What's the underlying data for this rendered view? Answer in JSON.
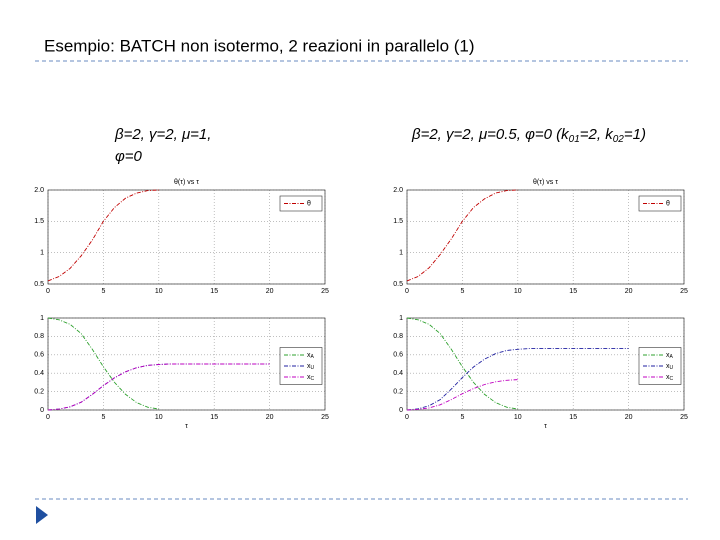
{
  "header": {
    "title": "Esempio: BATCH non isotermo, 2 reazioni in parallelo (1)"
  },
  "captions": [
    [
      "β=2, γ=2, μ=1,",
      "φ=0"
    ],
    [
      "β=2, γ=2, μ=0.5, φ=0  (k",
      "01",
      "=2, k",
      "02",
      "=1)"
    ]
  ],
  "chart_data": [
    {
      "type": "line",
      "title": "θ(τ) vs τ",
      "x": [
        0,
        1,
        2,
        3,
        4,
        5,
        6,
        7,
        8,
        9,
        10
      ],
      "series": [
        {
          "name": "θ",
          "color": "#c00000",
          "values": [
            0.55,
            0.62,
            0.75,
            0.95,
            1.2,
            1.5,
            1.72,
            1.87,
            1.95,
            1.99,
            2.0
          ]
        }
      ],
      "xlim": [
        0,
        25
      ],
      "xticks": [
        0,
        5,
        10,
        15,
        20,
        25
      ],
      "ylim": [
        0.5,
        2
      ],
      "yticks": [
        0.5,
        1,
        1.5,
        {
          "value": 2,
          "label": "2.0"
        }
      ],
      "grid": true,
      "legend": "upper right"
    },
    {
      "type": "line",
      "xlabel": "τ",
      "x": [
        0,
        1,
        2,
        3,
        4,
        5,
        6,
        7,
        8,
        9,
        10,
        11,
        12,
        13,
        14,
        15,
        16,
        17,
        18,
        19,
        20
      ],
      "series": [
        {
          "name": "xA",
          "color": "#2ca02c",
          "values": [
            1,
            0.98,
            0.93,
            0.83,
            0.66,
            0.47,
            0.3,
            0.17,
            0.08,
            0.03,
            0.01,
            null,
            null,
            null,
            null,
            null,
            null,
            null,
            null,
            null,
            null
          ]
        },
        {
          "name": "xU",
          "color": "#1f1fa0",
          "values": [
            0,
            0.01,
            0.035,
            0.085,
            0.17,
            0.265,
            0.35,
            0.415,
            0.46,
            0.485,
            0.495,
            0.5,
            0.5,
            0.5,
            0.5,
            0.5,
            0.5,
            0.5,
            0.5,
            0.5,
            0.5
          ]
        },
        {
          "name": "xC",
          "color": "#c000c0",
          "values": [
            0,
            0.01,
            0.035,
            0.085,
            0.17,
            0.265,
            0.35,
            0.415,
            0.46,
            0.485,
            0.495,
            0.5,
            0.5,
            0.5,
            0.5,
            0.5,
            0.5,
            0.5,
            0.5,
            0.5,
            0.5
          ]
        }
      ],
      "xlim": [
        0,
        25
      ],
      "xticks": [
        0,
        5,
        10,
        15,
        20,
        25
      ],
      "ylim": [
        0,
        1
      ],
      "yticks": [
        0,
        0.2,
        0.4,
        0.6,
        0.8,
        1
      ],
      "grid": true,
      "legend": "center right"
    },
    {
      "type": "line",
      "title": "θ(τ) vs τ",
      "x": [
        0,
        1,
        2,
        3,
        4,
        5,
        6,
        7,
        8,
        9,
        10
      ],
      "series": [
        {
          "name": "θ",
          "color": "#c00000",
          "values": [
            0.55,
            0.62,
            0.76,
            0.97,
            1.22,
            1.5,
            1.72,
            1.86,
            1.95,
            1.99,
            2.0
          ]
        }
      ],
      "xlim": [
        0,
        25
      ],
      "xticks": [
        0,
        5,
        10,
        15,
        20,
        25
      ],
      "ylim": [
        0.5,
        2
      ],
      "yticks": [
        0.5,
        1,
        1.5,
        {
          "value": 2,
          "label": "2.0"
        }
      ],
      "grid": true,
      "legend": "upper right"
    },
    {
      "type": "line",
      "xlabel": "τ",
      "x": [
        0,
        1,
        2,
        3,
        4,
        5,
        6,
        7,
        8,
        9,
        10,
        11,
        12,
        13,
        14,
        15,
        16,
        17,
        18,
        19,
        20
      ],
      "series": [
        {
          "name": "xA",
          "color": "#2ca02c",
          "values": [
            1,
            0.98,
            0.93,
            0.83,
            0.66,
            0.47,
            0.3,
            0.17,
            0.08,
            0.03,
            0.01,
            null,
            null,
            null,
            null,
            null,
            null,
            null,
            null,
            null,
            null
          ]
        },
        {
          "name": "xU",
          "color": "#1f1fa0",
          "values": [
            0,
            0.013,
            0.047,
            0.113,
            0.227,
            0.353,
            0.467,
            0.553,
            0.613,
            0.647,
            0.66,
            0.667,
            0.667,
            0.667,
            0.667,
            0.667,
            0.667,
            0.667,
            0.667,
            0.667,
            0.667
          ]
        },
        {
          "name": "xC",
          "color": "#c000c0",
          "values": [
            0,
            0.007,
            0.023,
            0.057,
            0.113,
            0.177,
            0.233,
            0.277,
            0.307,
            0.323,
            0.33,
            null,
            null,
            null,
            null,
            null,
            null,
            null,
            null,
            null,
            null
          ]
        }
      ],
      "xlim": [
        0,
        25
      ],
      "xticks": [
        0,
        5,
        10,
        15,
        20,
        25
      ],
      "ylim": [
        0,
        1
      ],
      "yticks": [
        0,
        0.2,
        0.4,
        0.6,
        0.8,
        1
      ],
      "grid": true,
      "legend": "center right"
    }
  ]
}
